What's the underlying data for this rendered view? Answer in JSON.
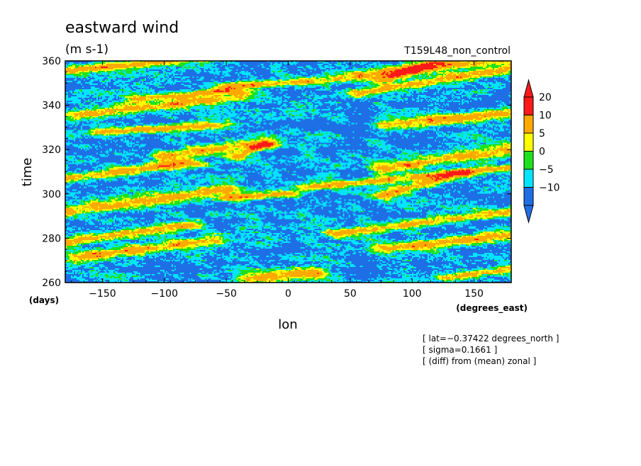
{
  "chart_data": {
    "type": "heatmap",
    "title": "eastward wind",
    "units": "(m s-1)",
    "experiment": "T159L48_non_control",
    "xlabel": "lon",
    "xunit": "(degrees_east)",
    "ylabel": "time",
    "yunit": "(days)",
    "xlim": [
      -180,
      180
    ],
    "ylim": [
      260,
      360
    ],
    "xticks": [
      -150,
      -100,
      -50,
      0,
      50,
      100,
      150
    ],
    "yticks": [
      260,
      280,
      300,
      320,
      340,
      360
    ],
    "xtick_labels": [
      "−150",
      "−100",
      "−50",
      "0",
      "50",
      "100",
      "150"
    ],
    "ytick_labels": [
      "260",
      "280",
      "300",
      "320",
      "340",
      "360"
    ],
    "colorbar": {
      "levels": [
        -10,
        -5,
        0,
        5,
        10,
        20
      ],
      "labels": [
        "−10",
        "−5",
        "0",
        "5",
        "10",
        "20"
      ],
      "colors": [
        "#1e6fe6",
        "#1e6fe6",
        "#00e5ff",
        "#1ee11e",
        "#ffff00",
        "#ffaa00",
        "#ff1a1a",
        "#ff1a1a"
      ]
    },
    "notes": [
      "[ lat=−0.37422 degrees_north ]",
      "[ sigma=0.1661 ]",
      "[ (diff) from (mean) zonal ]"
    ],
    "features": [
      {
        "lon0": -180,
        "t0": 356,
        "lon1": -60,
        "t1": 362,
        "w": 2.0
      },
      {
        "lon0": -120,
        "t0": 343,
        "lon1": -50,
        "t1": 347,
        "w": 1.6
      },
      {
        "lon0": -170,
        "t0": 336,
        "lon1": -40,
        "t1": 344,
        "w": 2.2
      },
      {
        "lon0": -50,
        "t0": 349,
        "lon1": 40,
        "t1": 352,
        "w": 1.8
      },
      {
        "lon0": 60,
        "t0": 354,
        "lon1": 180,
        "t1": 361,
        "w": 2.2
      },
      {
        "lon0": 60,
        "t0": 346,
        "lon1": 180,
        "t1": 357,
        "w": 2.2
      },
      {
        "lon0": 80,
        "t0": 331,
        "lon1": 180,
        "t1": 337,
        "w": 2.5
      },
      {
        "lon0": -150,
        "t0": 328,
        "lon1": -60,
        "t1": 331,
        "w": 1.8
      },
      {
        "lon0": -100,
        "t0": 317,
        "lon1": -20,
        "t1": 323,
        "w": 2.4
      },
      {
        "lon0": 80,
        "t0": 312,
        "lon1": 180,
        "t1": 320,
        "w": 2.8
      },
      {
        "lon0": -180,
        "t0": 307,
        "lon1": -80,
        "t1": 314,
        "w": 2.0
      },
      {
        "lon0": -180,
        "t0": 292,
        "lon1": -50,
        "t1": 302,
        "w": 2.6
      },
      {
        "lon0": 80,
        "t0": 300,
        "lon1": 140,
        "t1": 309,
        "w": 2.4
      },
      {
        "lon0": 20,
        "t0": 303,
        "lon1": 180,
        "t1": 312,
        "w": 1.6
      },
      {
        "lon0": -50,
        "t0": 298,
        "lon1": 0,
        "t1": 300,
        "w": 1.6
      },
      {
        "lon0": 40,
        "t0": 282,
        "lon1": 180,
        "t1": 292,
        "w": 2.0
      },
      {
        "lon0": -180,
        "t0": 278,
        "lon1": -80,
        "t1": 286,
        "w": 2.2
      },
      {
        "lon0": -170,
        "t0": 271,
        "lon1": -60,
        "t1": 279,
        "w": 2.2
      },
      {
        "lon0": 80,
        "t0": 275,
        "lon1": 180,
        "t1": 281,
        "w": 2.4
      },
      {
        "lon0": -30,
        "t0": 262,
        "lon1": 20,
        "t1": 264,
        "w": 2.6
      },
      {
        "lon0": 130,
        "t0": 262,
        "lon1": 180,
        "t1": 266,
        "w": 1.8
      },
      {
        "lon0": -40,
        "t0": 317,
        "lon1": -20,
        "t1": 322,
        "w": 2.0
      },
      {
        "lon0": 80,
        "t0": 352,
        "lon1": 120,
        "t1": 360,
        "w": 2.4
      }
    ]
  }
}
